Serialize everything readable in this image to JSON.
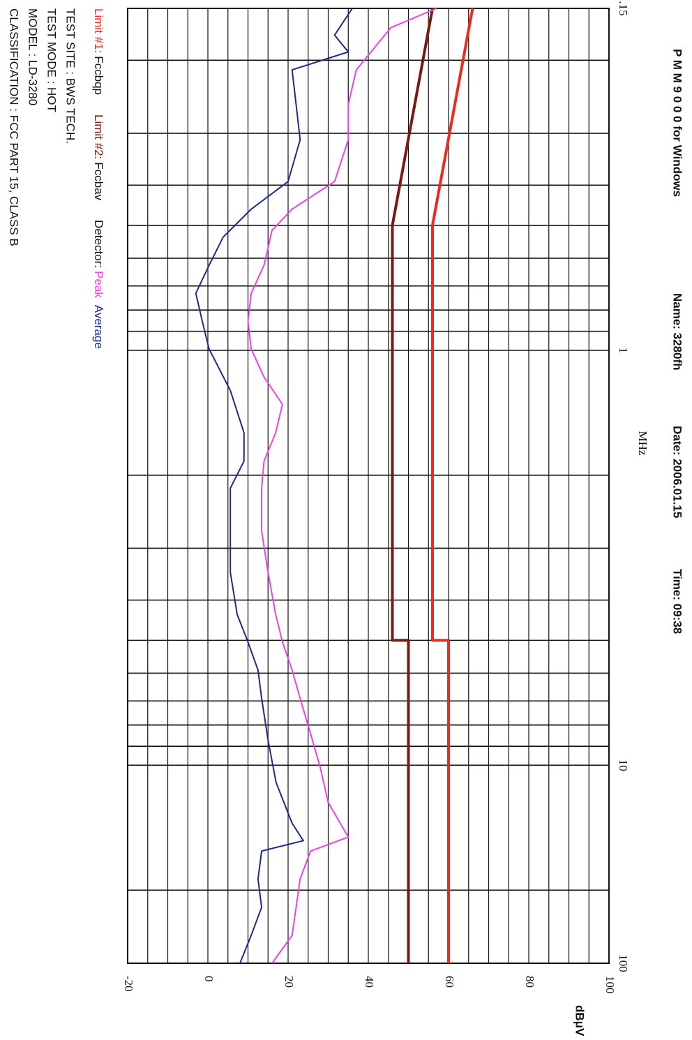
{
  "chart_data": {
    "type": "line",
    "title": "P M M  9 0 0 0  for Windows",
    "name_label": "Name: 3280fh",
    "date_label": "Date: 2006.01.15",
    "time_label": "Time: 09:38",
    "x_label": "MHz",
    "y_label": "dBμV",
    "x_log": true,
    "xlim": [
      0.15,
      30
    ],
    "xticks": [
      {
        "value": 0.15,
        "label": ".15"
      },
      1,
      10
    ],
    "x_end_label": "100",
    "xgrid": [
      0.15,
      0.2,
      0.3,
      0.4,
      0.5,
      0.6,
      0.7,
      0.8,
      0.9,
      1,
      2,
      3,
      4,
      5,
      6,
      7,
      8,
      9,
      10,
      20,
      30
    ],
    "ylim": [
      -20,
      100
    ],
    "yticks": [
      -20,
      0,
      20,
      40,
      60,
      80,
      100
    ],
    "ygrid": [
      -20,
      -15,
      -10,
      -5,
      0,
      5,
      10,
      15,
      20,
      25,
      30,
      35,
      40,
      45,
      50,
      55,
      60,
      65,
      70,
      75,
      80,
      85,
      90,
      95,
      100
    ],
    "grid": true,
    "detector_label": "Detector:",
    "series": [
      {
        "name": "Fccbqp",
        "tag": "Limit #1:",
        "color": "#ee2a1e",
        "x": [
          0.15,
          0.5,
          5,
          5,
          30
        ],
        "values": [
          66,
          56,
          56,
          60,
          60
        ]
      },
      {
        "name": "Fccbav",
        "tag": "Limit #2:",
        "color": "#7a1a12",
        "x": [
          0.15,
          0.5,
          5,
          5,
          30
        ],
        "values": [
          56,
          46,
          46,
          50,
          50
        ]
      },
      {
        "name": "Peak",
        "color": "#f040e8",
        "x": [
          0.15,
          0.167,
          0.211,
          0.256,
          0.311,
          0.392,
          0.457,
          0.514,
          0.624,
          0.729,
          0.851,
          0.993,
          1.16,
          1.35,
          1.58,
          1.85,
          2.15,
          2.72,
          3.43,
          4.33,
          5.05,
          5.9,
          6.9,
          8.4,
          10.1,
          12.3,
          14.9,
          16.1,
          18.8,
          22.0,
          25.7,
          30
        ],
        "values": [
          57,
          45.6,
          37,
          35,
          35,
          31.6,
          21,
          16,
          14,
          10.8,
          10,
          10.8,
          14,
          18.6,
          16.9,
          14,
          13.4,
          13.4,
          15,
          16.9,
          18.6,
          21,
          23,
          25.6,
          28,
          30,
          35,
          25.6,
          23,
          22,
          21,
          16
        ]
      },
      {
        "name": "Average",
        "color": "#1c2a8a",
        "x": [
          0.15,
          0.174,
          0.191,
          0.211,
          0.256,
          0.311,
          0.392,
          0.457,
          0.534,
          0.624,
          0.729,
          0.851,
          0.993,
          1.25,
          1.58,
          1.85,
          2.15,
          2.72,
          3.43,
          4.33,
          5.05,
          5.9,
          6.9,
          8.7,
          11.0,
          13.8,
          15.2,
          16.1,
          18.8,
          22.0,
          25.7,
          30
        ],
        "values": [
          36,
          31.6,
          35,
          21,
          22,
          23,
          20,
          10.8,
          3.8,
          0.3,
          -3,
          -1.4,
          0.3,
          5.6,
          9,
          9,
          5.6,
          5.6,
          5.6,
          7.3,
          10,
          12.5,
          13.4,
          15,
          17,
          21,
          23.8,
          13.4,
          12.5,
          13.4,
          10.8,
          8
        ]
      }
    ],
    "info": [
      "TEST SITE : BWS TECH.",
      "TEST MODE : HOT",
      "MODEL : LD-3280",
      "CLASSIFICATION : FCC PART 15, CLASS B"
    ]
  }
}
